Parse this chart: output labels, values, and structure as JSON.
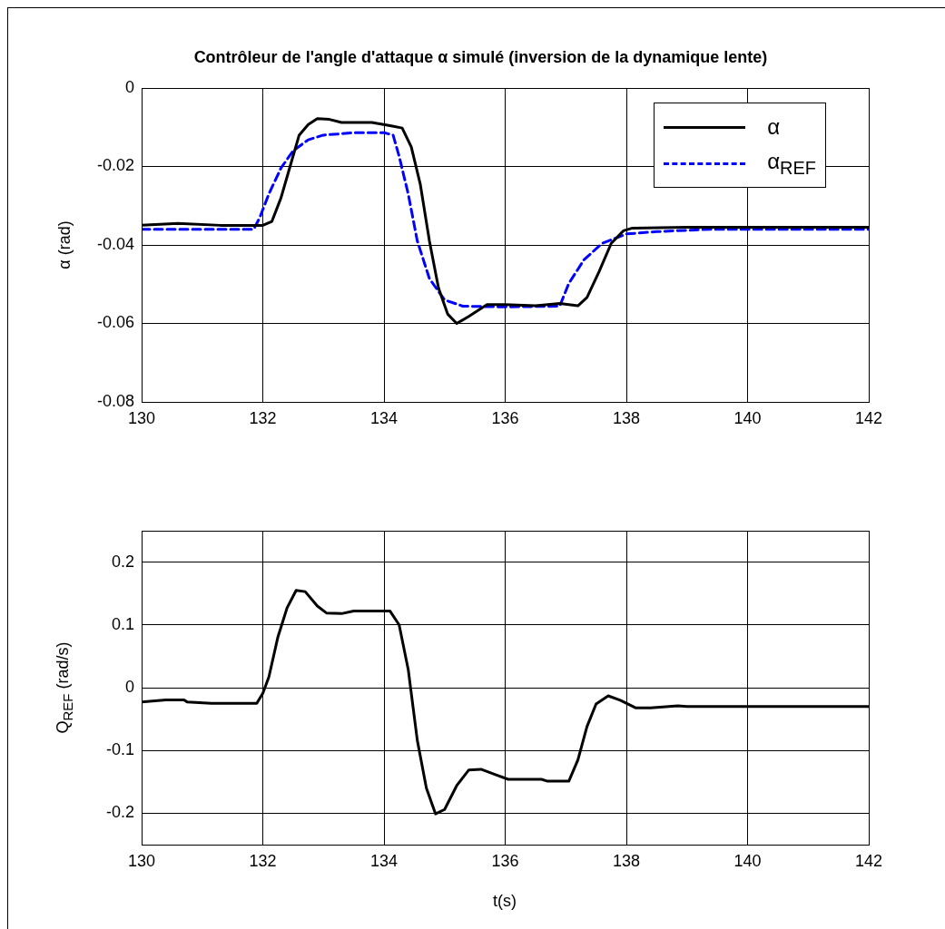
{
  "chart_data": [
    {
      "type": "line",
      "title": "Contrôleur de l'angle d'attaque  α simulé (inversion de la dynamique lente)",
      "ylabel": "α (rad)",
      "xlim": [
        130,
        142
      ],
      "xticks": [
        130,
        132,
        134,
        136,
        138,
        140,
        142
      ],
      "ylim": [
        -0.08,
        0
      ],
      "yticks": [
        -0.08,
        -0.06,
        -0.04,
        -0.02,
        0
      ],
      "grid": true,
      "legend": "top right",
      "marker": "none",
      "series": [
        {
          "name": "α",
          "color": "#000000",
          "line_style": "solid",
          "x": [
            130,
            130.6,
            131.3,
            132,
            132.15,
            132.3,
            132.45,
            132.6,
            132.75,
            132.9,
            133.1,
            133.3,
            133.8,
            134.1,
            134.3,
            134.45,
            134.6,
            134.75,
            134.9,
            135.05,
            135.2,
            135.4,
            135.7,
            136,
            136.5,
            136.9,
            137.2,
            137.35,
            137.55,
            137.75,
            137.95,
            138.1,
            139,
            142
          ],
          "values": [
            -0.035,
            -0.0345,
            -0.035,
            -0.035,
            -0.034,
            -0.028,
            -0.02,
            -0.012,
            -0.0093,
            -0.0078,
            -0.008,
            -0.0088,
            -0.0088,
            -0.0096,
            -0.0102,
            -0.015,
            -0.0246,
            -0.039,
            -0.051,
            -0.0576,
            -0.06,
            -0.0582,
            -0.0552,
            -0.0552,
            -0.0555,
            -0.0549,
            -0.0555,
            -0.0534,
            -0.0468,
            -0.0396,
            -0.0364,
            -0.0357,
            -0.0355,
            -0.0355
          ]
        },
        {
          "name": "α$_{REF}$",
          "color": "#0000ff",
          "line_style": "dashed",
          "x": [
            130,
            131.85,
            131.95,
            132.1,
            132.3,
            132.5,
            132.75,
            133,
            133.5,
            134,
            134.15,
            134.25,
            134.4,
            134.55,
            134.75,
            135,
            135.3,
            136,
            136.9,
            137.05,
            137.3,
            137.6,
            138,
            138.5,
            139.4,
            142
          ],
          "values": [
            -0.036,
            -0.036,
            -0.033,
            -0.027,
            -0.0204,
            -0.016,
            -0.0132,
            -0.012,
            -0.0114,
            -0.0114,
            -0.012,
            -0.0174,
            -0.027,
            -0.039,
            -0.0486,
            -0.054,
            -0.0556,
            -0.0558,
            -0.0556,
            -0.0498,
            -0.0438,
            -0.0396,
            -0.0372,
            -0.0366,
            -0.036,
            -0.036
          ]
        }
      ]
    },
    {
      "type": "line",
      "xlabel": "t(s)",
      "ylabel": "Q$_{REF}$ (rad/s)",
      "xlim": [
        130,
        142
      ],
      "xticks": [
        130,
        132,
        134,
        136,
        138,
        140,
        142
      ],
      "ylim": [
        -0.25,
        0.25
      ],
      "yticks": [
        -0.2,
        -0.1,
        0,
        0.1,
        0.2
      ],
      "grid": true,
      "marker": "none",
      "series": [
        {
          "color": "#000000",
          "line_style": "solid",
          "x": [
            130,
            130.4,
            130.7,
            130.75,
            131.15,
            131.9,
            132,
            132.1,
            132.25,
            132.4,
            132.55,
            132.7,
            132.9,
            133.05,
            133.3,
            133.5,
            134.1,
            134.25,
            134.4,
            134.55,
            134.7,
            134.85,
            135,
            135.2,
            135.4,
            135.6,
            135.85,
            136.05,
            136.6,
            136.7,
            137.05,
            137.2,
            137.35,
            137.5,
            137.7,
            137.9,
            138.15,
            138.4,
            138.85,
            139,
            142
          ],
          "values": [
            -0.0226,
            -0.0196,
            -0.0196,
            -0.0226,
            -0.025,
            -0.025,
            -0.009,
            0.017,
            0.081,
            0.127,
            0.155,
            0.153,
            0.13,
            0.119,
            0.118,
            0.122,
            0.122,
            0.1,
            0.029,
            -0.084,
            -0.16,
            -0.201,
            -0.194,
            -0.156,
            -0.131,
            -0.13,
            -0.139,
            -0.146,
            -0.146,
            -0.149,
            -0.149,
            -0.115,
            -0.062,
            -0.026,
            -0.013,
            -0.02,
            -0.032,
            -0.032,
            -0.029,
            -0.03,
            -0.03
          ]
        }
      ]
    }
  ]
}
